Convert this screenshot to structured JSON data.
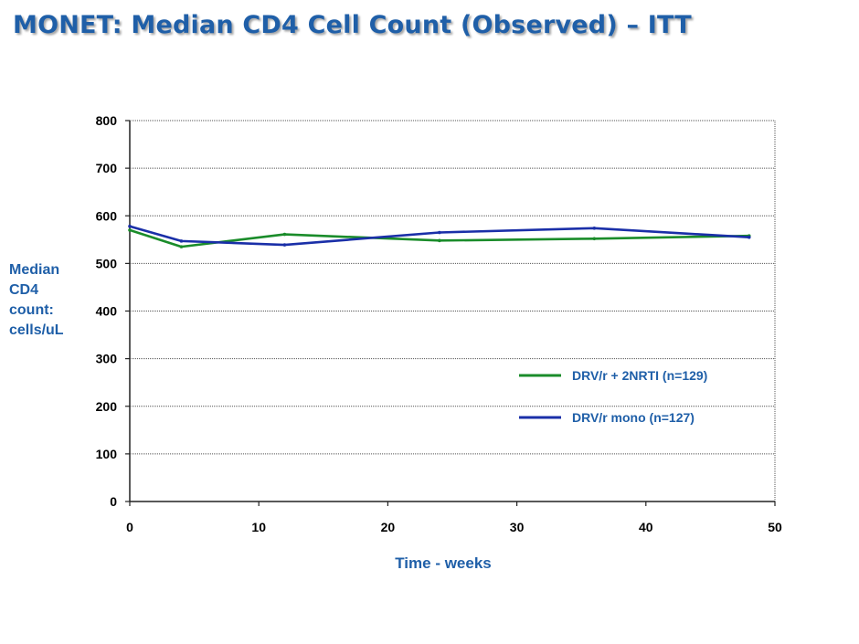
{
  "title": "MONET: Median CD4 Cell Count (Observed) – ITT",
  "chart_data": {
    "type": "line",
    "title": "MONET: Median CD4 Cell Count (Observed) – ITT",
    "xlabel": "Time - weeks",
    "ylabel_lines": [
      "Median",
      "CD4",
      "count:",
      "cells/uL"
    ],
    "xlim": [
      0,
      50
    ],
    "ylim": [
      0,
      800
    ],
    "xticks": [
      0,
      10,
      20,
      30,
      40,
      50
    ],
    "yticks": [
      0,
      100,
      200,
      300,
      400,
      500,
      600,
      700,
      800
    ],
    "grid": "horizontal dotted",
    "legend_position": "lower-right",
    "series": [
      {
        "name": "DRV/r + 2NRTI (n=129)",
        "color": "#1a8c2a",
        "x": [
          0,
          4,
          12,
          24,
          36,
          48
        ],
        "y": [
          570,
          535,
          561,
          548,
          552,
          558
        ]
      },
      {
        "name": "DRV/r mono (n=127)",
        "color": "#1a2fa8",
        "x": [
          0,
          4,
          12,
          24,
          36,
          48
        ],
        "y": [
          578,
          547,
          539,
          565,
          574,
          555
        ]
      }
    ]
  }
}
